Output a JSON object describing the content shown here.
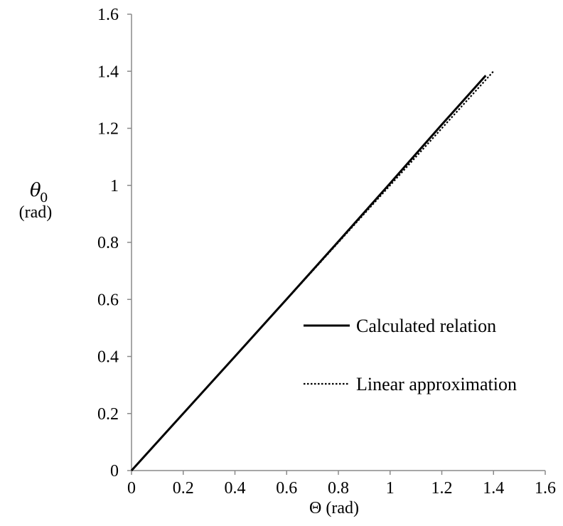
{
  "chart_data": {
    "type": "line",
    "xlabel": "Θ (rad)",
    "ylabel_symbol": "θ",
    "ylabel_subscript": "0",
    "ylabel_unit": "(rad)",
    "xlim": [
      0,
      1.6
    ],
    "ylim": [
      0,
      1.6
    ],
    "x_ticks": [
      "0",
      "0.2",
      "0.4",
      "0.6",
      "0.8",
      "1",
      "1.2",
      "1.4",
      "1.6"
    ],
    "y_ticks": [
      "0",
      "0.2",
      "0.4",
      "0.6",
      "0.8",
      "1",
      "1.2",
      "1.4",
      "1.6"
    ],
    "grid": false,
    "legend_position": "lower-right",
    "series": [
      {
        "name": "Calculated relation",
        "style": "solid",
        "color": "#000000",
        "x": [
          0,
          0.2,
          0.4,
          0.6,
          0.8,
          1.0,
          1.2,
          1.37
        ],
        "y": [
          0,
          0.2,
          0.4,
          0.601,
          0.803,
          1.007,
          1.213,
          1.385
        ]
      },
      {
        "name": "Linear approximation",
        "style": "dotted",
        "color": "#000000",
        "x": [
          0,
          1.4
        ],
        "y": [
          0,
          1.4
        ]
      }
    ]
  }
}
